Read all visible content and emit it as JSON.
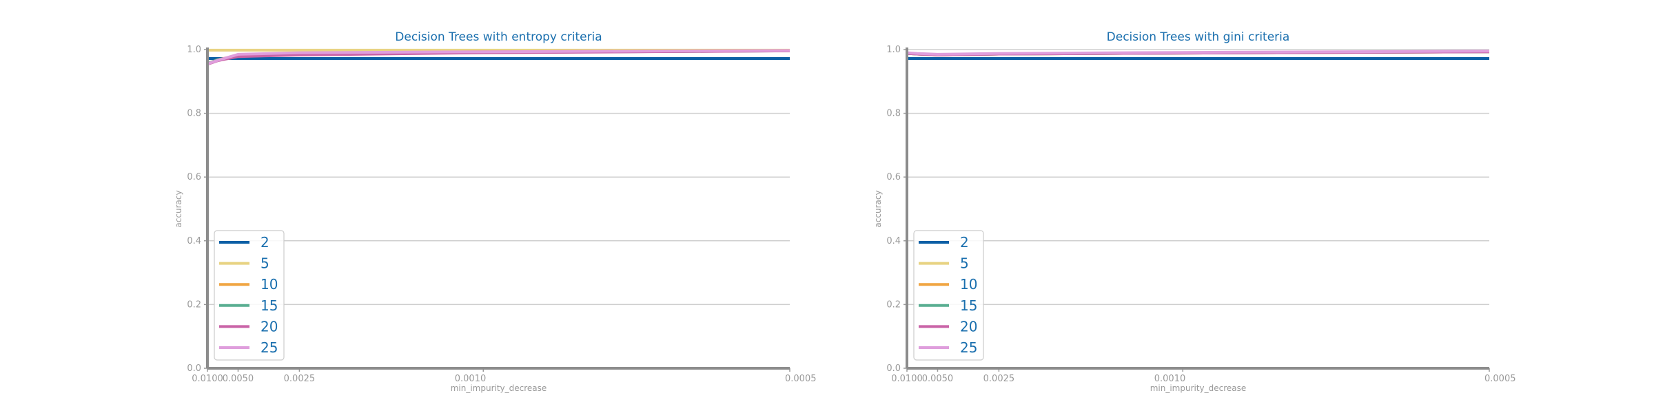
{
  "chart_data": [
    {
      "type": "line",
      "title": "Decision Trees with entropy criteria",
      "xlabel": "min_impurity_decrease",
      "ylabel": "accuracy",
      "x_scale": "reciprocal",
      "x": [
        0.01,
        0.0075,
        0.005,
        0.0025,
        0.001,
        0.0005
      ],
      "xticks": [
        0.01,
        0.005,
        0.0025,
        0.001,
        0.0005
      ],
      "xtick_labels": [
        "0.0100",
        "0.0050",
        "0.0025",
        "0.0010",
        "0.0005"
      ],
      "ylim": [
        0,
        1
      ],
      "yticks": [
        0,
        0.2,
        0.4,
        0.6,
        0.8,
        1
      ],
      "ytick_labels": [
        "0.0",
        "0.2",
        "0.4",
        "0.6",
        "0.8",
        "1.0"
      ],
      "grid": "horizontal",
      "legend_position": "lower-left",
      "series": [
        {
          "name": "2",
          "color": "#0b5fa5",
          "values": [
            0.972,
            0.972,
            0.972,
            0.972,
            0.972,
            0.972
          ]
        },
        {
          "name": "5",
          "color": "#e8d383",
          "values": [
            0.998,
            0.998,
            0.998,
            0.998,
            0.998,
            0.998
          ]
        },
        {
          "name": "10",
          "color": "#f0a542",
          "values": [
            0.956,
            0.968,
            0.982,
            0.988,
            0.993,
            0.997
          ]
        },
        {
          "name": "15",
          "color": "#59ae91",
          "values": [
            0.956,
            0.968,
            0.98,
            0.986,
            0.991,
            0.996
          ]
        },
        {
          "name": "20",
          "color": "#c963a6",
          "values": [
            0.954,
            0.965,
            0.978,
            0.983,
            0.99,
            0.996
          ]
        },
        {
          "name": "25",
          "color": "#df9edc",
          "values": [
            0.955,
            0.966,
            0.985,
            0.99,
            0.993,
            0.997
          ]
        }
      ]
    },
    {
      "type": "line",
      "title": "Decision Trees with gini criteria",
      "xlabel": "min_impurity_decrease",
      "ylabel": "accuracy",
      "x_scale": "reciprocal",
      "x": [
        0.01,
        0.0075,
        0.005,
        0.0025,
        0.001,
        0.0005
      ],
      "xticks": [
        0.01,
        0.005,
        0.0025,
        0.001,
        0.0005
      ],
      "xtick_labels": [
        "0.0100",
        "0.0050",
        "0.0025",
        "0.0010",
        "0.0005"
      ],
      "ylim": [
        0,
        1
      ],
      "yticks": [
        0,
        0.2,
        0.4,
        0.6,
        0.8,
        1
      ],
      "ytick_labels": [
        "0.0",
        "0.2",
        "0.4",
        "0.6",
        "0.8",
        "1.0"
      ],
      "grid": "horizontal",
      "legend_position": "lower-left",
      "series": [
        {
          "name": "2",
          "color": "#0b5fa5",
          "values": [
            0.972,
            0.972,
            0.972,
            0.972,
            0.972,
            0.972
          ]
        },
        {
          "name": "5",
          "color": "#e8d383",
          "values": [
            0.988,
            0.986,
            0.983,
            0.986,
            0.989,
            0.993
          ]
        },
        {
          "name": "10",
          "color": "#f0a542",
          "values": [
            0.988,
            0.986,
            0.983,
            0.986,
            0.989,
            0.993
          ]
        },
        {
          "name": "15",
          "color": "#59ae91",
          "values": [
            0.988,
            0.986,
            0.983,
            0.986,
            0.989,
            0.993
          ]
        },
        {
          "name": "20",
          "color": "#c963a6",
          "values": [
            0.988,
            0.986,
            0.983,
            0.986,
            0.989,
            0.993
          ]
        },
        {
          "name": "25",
          "color": "#df9edc",
          "values": [
            0.99,
            0.988,
            0.985,
            0.988,
            0.991,
            0.995
          ]
        }
      ]
    }
  ]
}
